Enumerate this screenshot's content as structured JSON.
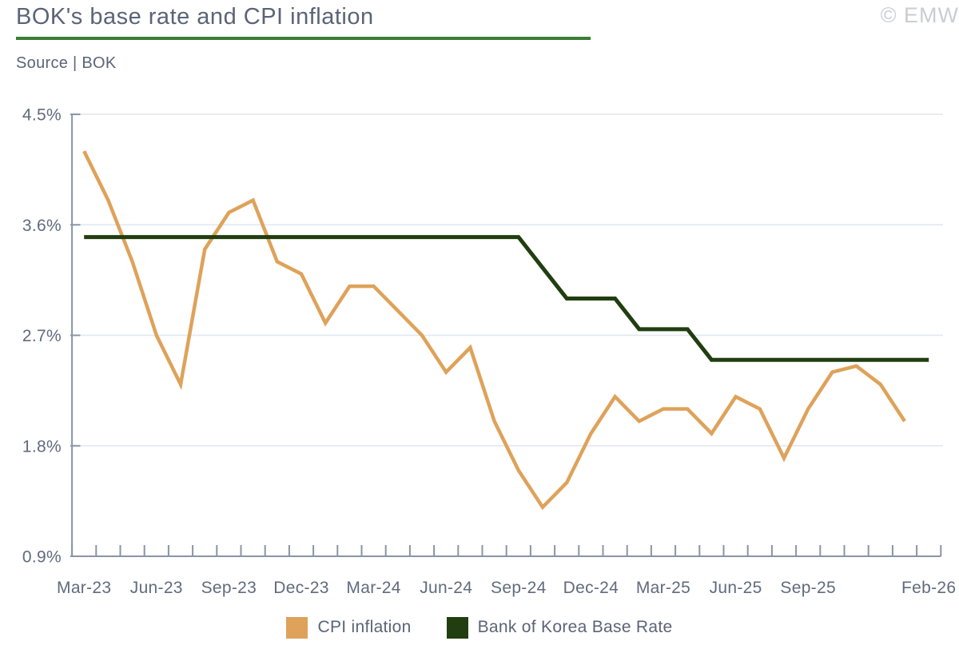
{
  "header": {
    "title": "BOK's base rate and CPI inflation",
    "source": "Source | BOK",
    "watermark": "© EMW"
  },
  "colors": {
    "cpi_line": "#dea25a",
    "base_rate_line": "#213e10",
    "title_rule_green": "#3a7d33",
    "axis": "#8a94a6",
    "gridline": "#dfe7f0",
    "tick_label": "#606b7e",
    "heading_text": "#5a6477",
    "watermark_text": "#c9cdd3"
  },
  "chart_data": {
    "type": "line",
    "title": "BOK's base rate and CPI inflation",
    "x": [
      "Mar-23",
      "Apr-23",
      "May-23",
      "Jun-23",
      "Jul-23",
      "Aug-23",
      "Sep-23",
      "Oct-23",
      "Nov-23",
      "Dec-23",
      "Jan-24",
      "Feb-24",
      "Mar-24",
      "Apr-24",
      "May-24",
      "Jun-24",
      "Jul-24",
      "Aug-24",
      "Sep-24",
      "Oct-24",
      "Nov-24",
      "Dec-24",
      "Jan-25",
      "Feb-25",
      "Mar-25",
      "Apr-25",
      "May-25",
      "Jun-25",
      "Jul-25",
      "Aug-25",
      "Sep-25",
      "Oct-25",
      "Nov-25",
      "Dec-25",
      "Jan-26",
      "Feb-26"
    ],
    "series": [
      {
        "name": "CPI inflation",
        "color": "#dea25a",
        "stroke_width": 4.5,
        "values": [
          4.2,
          3.8,
          3.3,
          2.7,
          2.3,
          3.4,
          3.7,
          3.8,
          3.3,
          3.2,
          2.8,
          3.1,
          3.1,
          2.9,
          2.7,
          2.4,
          2.6,
          2.0,
          1.6,
          1.3,
          1.5,
          1.9,
          2.2,
          2.0,
          2.1,
          2.1,
          1.9,
          2.2,
          2.1,
          1.7,
          2.1,
          2.4,
          2.45,
          2.3,
          2.0
        ]
      },
      {
        "name": "Bank of Korea Base Rate",
        "color": "#213e10",
        "stroke_width": 5,
        "values": [
          3.5,
          3.5,
          3.5,
          3.5,
          3.5,
          3.5,
          3.5,
          3.5,
          3.5,
          3.5,
          3.5,
          3.5,
          3.5,
          3.5,
          3.5,
          3.5,
          3.5,
          3.5,
          3.5,
          3.25,
          3.0,
          3.0,
          3.0,
          2.75,
          2.75,
          2.75,
          2.5,
          2.5,
          2.5,
          2.5,
          2.5,
          2.5,
          2.5,
          2.5,
          2.5,
          2.5
        ]
      }
    ],
    "ylim": [
      0.9,
      4.5
    ],
    "yticks": [
      "4.5%",
      "3.6%",
      "2.7%",
      "1.8%",
      "0.9%"
    ],
    "ytick_values": [
      4.5,
      3.6,
      2.7,
      1.8,
      0.9
    ],
    "xtick_label_indices": [
      0,
      3,
      6,
      9,
      12,
      15,
      18,
      21,
      24,
      27,
      30,
      35
    ],
    "grid": true,
    "legend_position": "bottom"
  },
  "legend": {
    "items": [
      {
        "label": "CPI inflation",
        "color": "#dea25a"
      },
      {
        "label": "Bank of Korea Base Rate",
        "color": "#213e10"
      }
    ]
  }
}
